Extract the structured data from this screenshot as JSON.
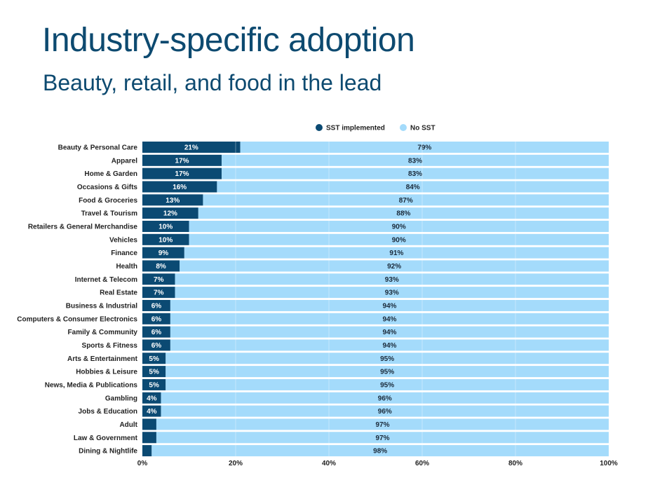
{
  "chart_data": {
    "type": "bar",
    "orientation": "horizontal",
    "stacked": true,
    "title": "Industry-specific adoption",
    "subtitle": "Beauty, retail, and food in the lead",
    "categories": [
      "Beauty & Personal Care",
      "Apparel",
      "Home & Garden",
      "Occasions & Gifts",
      "Food & Groceries",
      "Travel & Tourism",
      "Retailers & General Merchandise",
      "Vehicles",
      "Finance",
      "Health",
      "Internet & Telecom",
      "Real Estate",
      "Business & Industrial",
      "Computers & Consumer Electronics",
      "Family & Community",
      "Sports & Fitness",
      "Arts & Entertainment",
      "Hobbies & Leisure",
      "News, Media & Publications",
      "Gambling",
      "Jobs & Education",
      "Adult",
      "Law & Government",
      "Dining & Nightlife"
    ],
    "series": [
      {
        "name": "SST implemented",
        "color": "#0b4a73",
        "values": [
          21,
          17,
          17,
          16,
          13,
          12,
          10,
          10,
          9,
          8,
          7,
          7,
          6,
          6,
          6,
          6,
          5,
          5,
          5,
          4,
          4,
          3,
          3,
          2
        ],
        "labels": [
          "21%",
          "17%",
          "17%",
          "16%",
          "13%",
          "12%",
          "10%",
          "10%",
          "9%",
          "8%",
          "7%",
          "7%",
          "6%",
          "6%",
          "6%",
          "6%",
          "5%",
          "5%",
          "5%",
          "4%",
          "4%",
          "",
          "",
          ""
        ]
      },
      {
        "name": "No SST",
        "color": "#a4dbfb",
        "values": [
          79,
          83,
          83,
          84,
          87,
          88,
          90,
          90,
          91,
          92,
          93,
          93,
          94,
          94,
          94,
          94,
          95,
          95,
          95,
          96,
          96,
          97,
          97,
          98
        ],
        "labels": [
          "79%",
          "83%",
          "83%",
          "84%",
          "87%",
          "88%",
          "90%",
          "90%",
          "91%",
          "92%",
          "93%",
          "93%",
          "94%",
          "94%",
          "94%",
          "94%",
          "95%",
          "95%",
          "95%",
          "96%",
          "96%",
          "97%",
          "97%",
          "98%"
        ]
      }
    ],
    "xlim": [
      0,
      100
    ],
    "xticks": [
      "0%",
      "20%",
      "40%",
      "60%",
      "80%",
      "100%"
    ],
    "legend": "top-center",
    "grid": true
  }
}
